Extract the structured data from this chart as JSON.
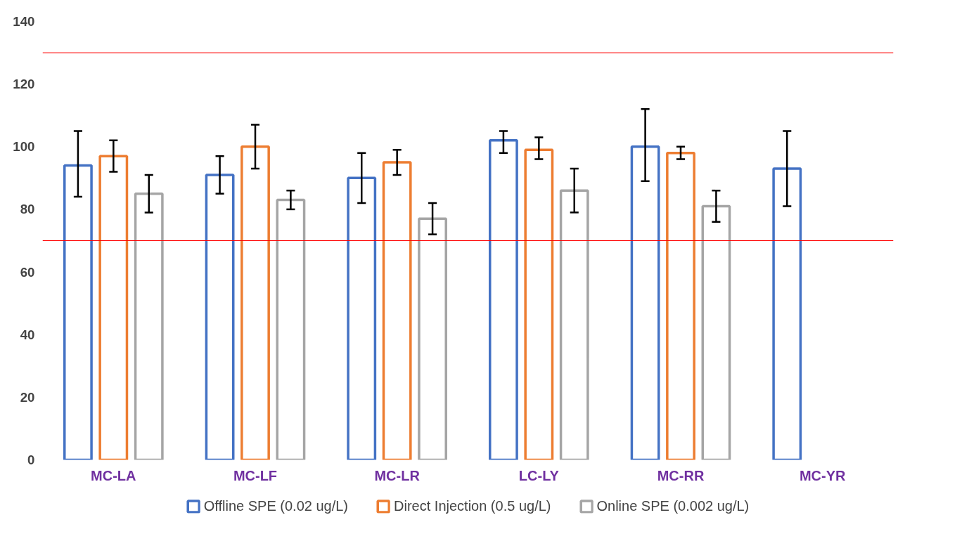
{
  "chart_data": {
    "type": "bar",
    "categories": [
      "MC-LA",
      "MC-LF",
      "MC-LR",
      "LC-LY",
      "MC-RR",
      "MC-YR"
    ],
    "series": [
      {
        "name": "Offline SPE (0.02 ug/L)",
        "color": "#4472c4",
        "values": [
          94,
          91,
          90,
          102,
          100,
          93
        ],
        "errors": [
          [
            84,
            105
          ],
          [
            85,
            97
          ],
          [
            82,
            98
          ],
          [
            98,
            105
          ],
          [
            89,
            112
          ],
          [
            81,
            105
          ]
        ]
      },
      {
        "name": "Direct Injection (0.5 ug/L)",
        "color": "#ed7d31",
        "values": [
          97,
          100,
          95,
          99,
          98,
          null
        ],
        "errors": [
          [
            92,
            102
          ],
          [
            93,
            107
          ],
          [
            91,
            99
          ],
          [
            96,
            103
          ],
          [
            96,
            100
          ],
          null
        ]
      },
      {
        "name": "Online SPE (0.002 ug/L)",
        "color": "#a5a5a5",
        "values": [
          85,
          83,
          77,
          86,
          81,
          null
        ],
        "errors": [
          [
            79,
            91
          ],
          [
            80,
            86
          ],
          [
            72,
            82
          ],
          [
            79,
            93
          ],
          [
            76,
            86
          ],
          null
        ]
      }
    ],
    "ylim": [
      0,
      140
    ],
    "yticks": [
      0,
      20,
      40,
      60,
      80,
      100,
      120,
      140
    ],
    "ref_lines": [
      {
        "axis": "y",
        "value": 130,
        "color": "#ff0000"
      },
      {
        "axis": "y",
        "value": 70,
        "color": "#ff0000"
      }
    ],
    "grid": false,
    "legend": "bottom"
  }
}
